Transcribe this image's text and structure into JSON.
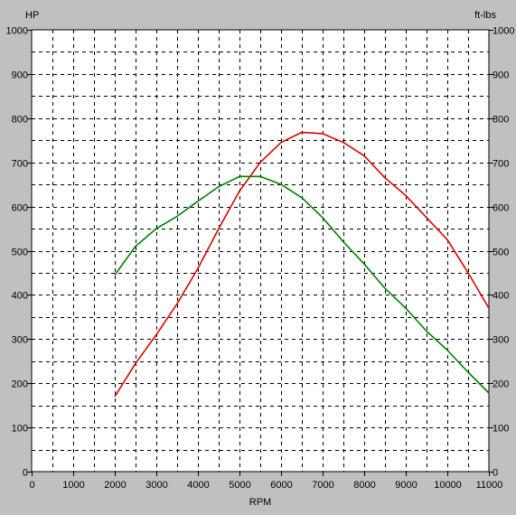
{
  "chart_data": {
    "type": "line",
    "xlabel": "RPM",
    "y_left_label": "HP",
    "y_right_label": "ft-lbs",
    "xlim": [
      0,
      11000
    ],
    "ylim": [
      0,
      1000
    ],
    "x_ticks": [
      0,
      1000,
      2000,
      3000,
      4000,
      5000,
      6000,
      7000,
      8000,
      9000,
      10000,
      11000
    ],
    "y_ticks": [
      0,
      100,
      200,
      300,
      400,
      500,
      600,
      700,
      800,
      900,
      1000
    ],
    "grid": true,
    "colors": {
      "plot_bg": "#ffffff",
      "frame_bg": "#c0c0c0",
      "grid": "#000000"
    },
    "series": [
      {
        "color": "#e00000",
        "x": [
          2000,
          2500,
          3000,
          3500,
          4000,
          4500,
          5000,
          5500,
          6000,
          6500,
          7000,
          7500,
          8000,
          8500,
          9000,
          9500,
          10000,
          10500,
          11000
        ],
        "values": [
          170,
          245,
          310,
          380,
          460,
          550,
          635,
          700,
          745,
          768,
          765,
          745,
          715,
          665,
          625,
          575,
          525,
          450,
          370
        ]
      },
      {
        "color": "#008000",
        "x": [
          2000,
          2500,
          3000,
          3500,
          4000,
          4500,
          5000,
          5500,
          6000,
          6500,
          7000,
          7500,
          8000,
          8500,
          9000,
          9500,
          10000,
          10500,
          11000
        ],
        "values": [
          445,
          510,
          550,
          578,
          612,
          645,
          668,
          668,
          650,
          620,
          575,
          520,
          470,
          415,
          370,
          318,
          275,
          225,
          178
        ]
      }
    ]
  }
}
